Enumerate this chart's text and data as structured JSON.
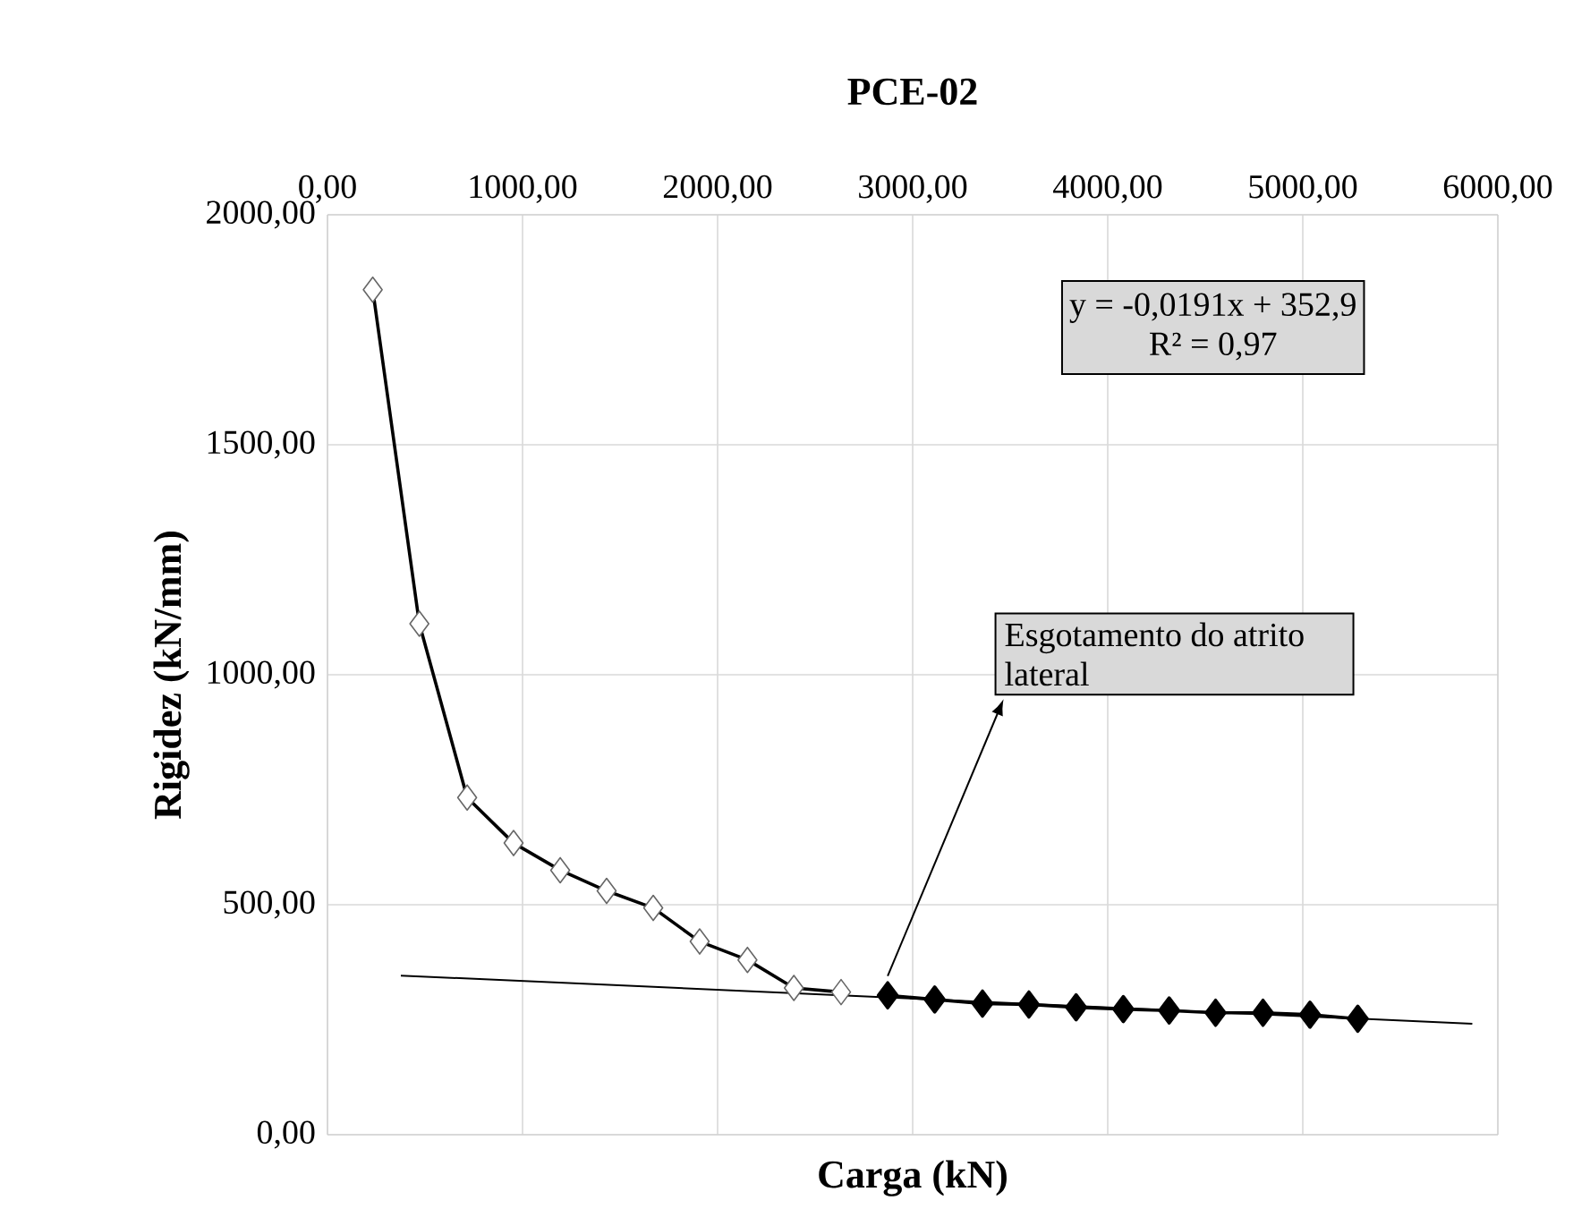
{
  "chart_data": {
    "type": "line",
    "title": "PCE-02",
    "xlabel": "Carga (kN)",
    "ylabel": "Rigidez (kN/mm)",
    "xlim": [
      0,
      6000
    ],
    "xticks": [
      {
        "value": 0,
        "label": "0,00"
      },
      {
        "value": 1000,
        "label": "1000,00"
      },
      {
        "value": 2000,
        "label": "2000,00"
      },
      {
        "value": 3000,
        "label": "3000,00"
      },
      {
        "value": 4000,
        "label": "4000,00"
      },
      {
        "value": 5000,
        "label": "5000,00"
      },
      {
        "value": 6000,
        "label": "6000,00"
      }
    ],
    "ylim": [
      0,
      2000
    ],
    "yticks": [
      {
        "value": 0,
        "label": "0,00"
      },
      {
        "value": 500,
        "label": "500,00"
      },
      {
        "value": 1000,
        "label": "1000,00"
      },
      {
        "value": 1500,
        "label": "1500,00"
      },
      {
        "value": 2000,
        "label": "2000,00"
      }
    ],
    "grid": true,
    "marker": "diamond",
    "line_style": "solid",
    "series": [
      {
        "color": "#000000",
        "x": [
          232,
          471,
          716,
          954,
          1193,
          1431,
          1670,
          1908,
          2153,
          2391,
          2633
        ],
        "values": [
          1837,
          1111,
          733,
          634,
          575,
          530,
          493,
          420,
          380,
          319,
          310
        ]
      },
      {
        "color": "#000000",
        "x": [
          2872,
          3113,
          3358,
          3596,
          3838,
          4080,
          4315,
          4553,
          4796,
          5037,
          5282
        ],
        "values": [
          303,
          294,
          285,
          283,
          277,
          273,
          270,
          265,
          265,
          261,
          252
        ]
      },
      {
        "type": "line",
        "marker": "none",
        "color": "#000000",
        "x": [
          376,
          5869
        ],
        "values": [
          346,
          241
        ]
      }
    ],
    "annotations": [
      "y = -0,0191x + 352,9",
      "R² = 0,97",
      "Esgotamento do atrito lateral"
    ]
  }
}
